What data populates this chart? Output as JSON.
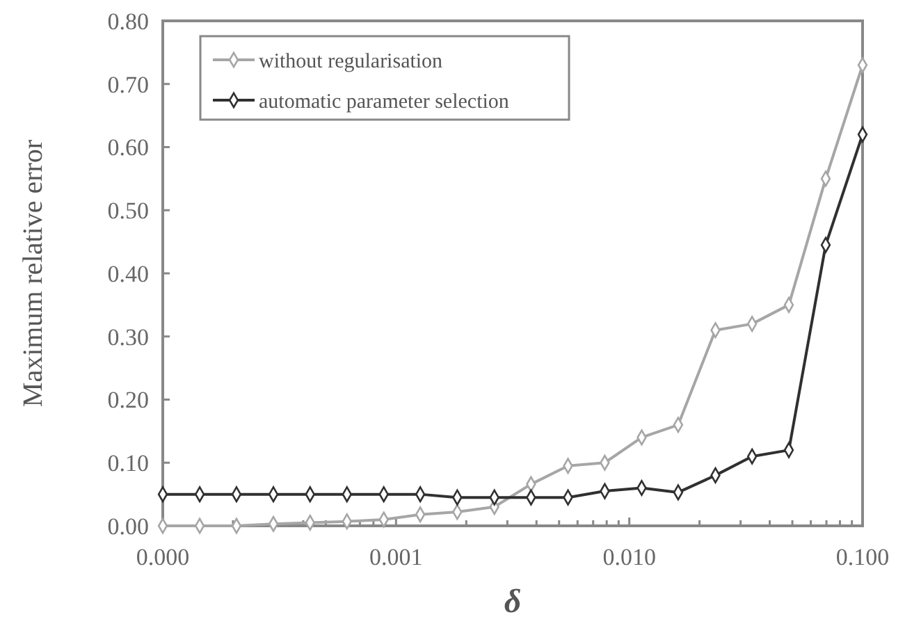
{
  "chart_data": {
    "type": "line",
    "xlabel": "δ",
    "ylabel": "Maximum relative error",
    "log": "x",
    "grid": false,
    "legend": "top left",
    "marker": "diamond",
    "line_style": "solid",
    "xlim": [
      0.0001,
      0.1
    ],
    "ylim": [
      0,
      0.8
    ],
    "xticks": [
      {
        "value": 0.0001,
        "label": "0.000"
      },
      {
        "value": 0.0002,
        "label": null
      },
      {
        "value": 0.0003,
        "label": null
      },
      {
        "value": 0.0004,
        "label": null
      },
      {
        "value": 0.0005,
        "label": null
      },
      {
        "value": 0.0006,
        "label": null
      },
      {
        "value": 0.0007,
        "label": null
      },
      {
        "value": 0.0008,
        "label": null
      },
      {
        "value": 0.0009,
        "label": null
      },
      {
        "value": 0.001,
        "label": "0.001"
      },
      {
        "value": 0.002,
        "label": null
      },
      {
        "value": 0.003,
        "label": null
      },
      {
        "value": 0.004,
        "label": null
      },
      {
        "value": 0.005,
        "label": null
      },
      {
        "value": 0.006,
        "label": null
      },
      {
        "value": 0.007,
        "label": null
      },
      {
        "value": 0.008,
        "label": null
      },
      {
        "value": 0.009,
        "label": null
      },
      {
        "value": 0.01,
        "label": "0.010"
      },
      {
        "value": 0.02,
        "label": null
      },
      {
        "value": 0.03,
        "label": null
      },
      {
        "value": 0.04,
        "label": null
      },
      {
        "value": 0.05,
        "label": null
      },
      {
        "value": 0.06,
        "label": null
      },
      {
        "value": 0.07,
        "label": null
      },
      {
        "value": 0.08,
        "label": null
      },
      {
        "value": 0.09,
        "label": null
      },
      {
        "value": 0.1,
        "label": "0.100"
      }
    ],
    "yticks": [
      {
        "value": 0,
        "label": "0.00"
      },
      {
        "value": 0.1,
        "label": "0.10"
      },
      {
        "value": 0.2,
        "label": "0.20"
      },
      {
        "value": 0.3,
        "label": "0.30"
      },
      {
        "value": 0.4,
        "label": "0.40"
      },
      {
        "value": 0.5,
        "label": "0.50"
      },
      {
        "value": 0.6,
        "label": "0.60"
      },
      {
        "value": 0.7,
        "label": "0.70"
      },
      {
        "value": 0.8,
        "label": "0.80"
      }
    ],
    "x": [
      0.0001,
      0.000144,
      0.000207,
      0.000298,
      0.000428,
      0.000616,
      0.000886,
      0.00127,
      0.00183,
      0.00264,
      0.00379,
      0.00546,
      0.00785,
      0.0113,
      0.0162,
      0.0234,
      0.0336,
      0.0483,
      0.0695,
      0.1
    ],
    "series": [
      {
        "name": "without regularisation",
        "color": "#a6a6a6",
        "values": [
          0,
          0,
          0,
          0.003,
          0.005,
          0.007,
          0.01,
          0.018,
          0.022,
          0.03,
          0.066,
          0.095,
          0.1,
          0.14,
          0.16,
          0.31,
          0.32,
          0.35,
          0.55,
          0.73
        ]
      },
      {
        "name": "automatic parameter selection",
        "color": "#303030",
        "values": [
          0.05,
          0.05,
          0.05,
          0.05,
          0.05,
          0.05,
          0.05,
          0.05,
          0.045,
          0.045,
          0.045,
          0.045,
          0.055,
          0.06,
          0.053,
          0.08,
          0.11,
          0.12,
          0.445,
          0.62
        ]
      }
    ]
  }
}
